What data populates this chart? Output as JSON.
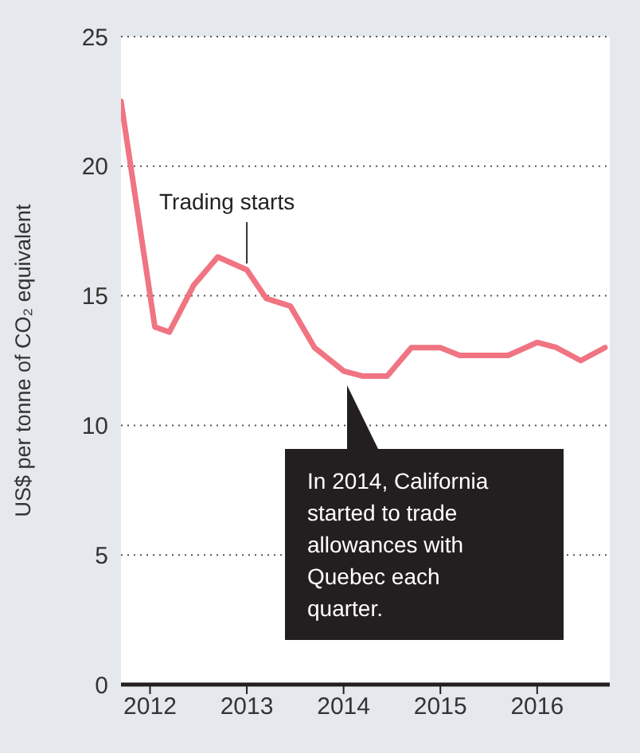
{
  "chart_data": {
    "type": "line",
    "ylabel": "US$ per tonne of CO₂ equivalent",
    "x": [
      2011.7,
      2012.05,
      2012.2,
      2012.45,
      2012.7,
      2013.0,
      2013.2,
      2013.45,
      2013.7,
      2014.0,
      2014.2,
      2014.45,
      2014.7,
      2015.0,
      2015.2,
      2015.45,
      2015.7,
      2016.0,
      2016.2,
      2016.45,
      2016.7
    ],
    "series": [
      {
        "color": "#f07482",
        "values": [
          22.5,
          13.8,
          13.6,
          15.4,
          16.5,
          16.0,
          14.9,
          14.6,
          13.0,
          12.1,
          11.9,
          11.9,
          13.0,
          13.0,
          12.7,
          12.7,
          12.7,
          13.2,
          13.0,
          12.5,
          13.0
        ]
      }
    ],
    "xlim": [
      2011.7,
      2016.75
    ],
    "xticks": [
      2012,
      2013,
      2014,
      2015,
      2016
    ],
    "ylim": [
      0,
      25
    ],
    "yticks": [
      0,
      5,
      10,
      15,
      20,
      25
    ],
    "grid": "y",
    "marker": "none",
    "line_style": "solid",
    "annotations": [
      {
        "text": "Trading starts",
        "x": 2013.0,
        "y": 16.0
      },
      "In 2014, California started to trade allowances with Quebec each quarter."
    ]
  }
}
